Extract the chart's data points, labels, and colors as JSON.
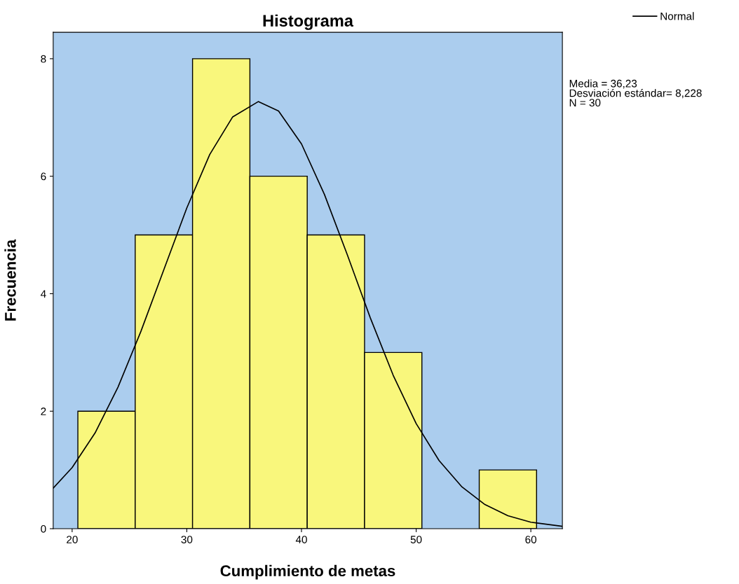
{
  "chart_data": {
    "type": "histogram",
    "title": "Histograma",
    "xlabel": "Cumplimiento de metas",
    "ylabel": "Frecuencia",
    "bins": [
      20.5,
      25.5,
      30.5,
      35.5,
      40.5,
      45.5,
      50.5,
      55.5,
      60.5
    ],
    "values": [
      2,
      5,
      8,
      6,
      5,
      3,
      0,
      1
    ],
    "color": "#f9f77c",
    "series": [
      {
        "type": "line",
        "name": "Normal",
        "color": "#000000",
        "x": [
          18.35,
          20,
          22,
          24,
          26,
          28,
          30,
          32,
          34,
          36.23,
          38,
          40,
          42,
          44,
          46,
          48,
          50,
          52,
          54,
          56,
          58,
          60,
          62.75
        ],
        "values": [
          0.69,
          1.04,
          1.63,
          2.41,
          3.36,
          4.41,
          5.46,
          6.37,
          7.01,
          7.27,
          7.11,
          6.55,
          5.69,
          4.66,
          3.59,
          2.61,
          1.79,
          1.16,
          0.71,
          0.41,
          0.22,
          0.11,
          0.04
        ]
      }
    ],
    "xlim": [
      18.35,
      62.75
    ],
    "ylim": [
      0,
      8.45
    ],
    "xticks": [
      20,
      30,
      40,
      50,
      60
    ],
    "yticks": [
      0,
      2,
      4,
      6,
      8
    ],
    "grid": false,
    "legend": "top right",
    "annotations": [
      "Media = 36,23\nDesviación estándar= 8,228\nN = 30"
    ]
  }
}
